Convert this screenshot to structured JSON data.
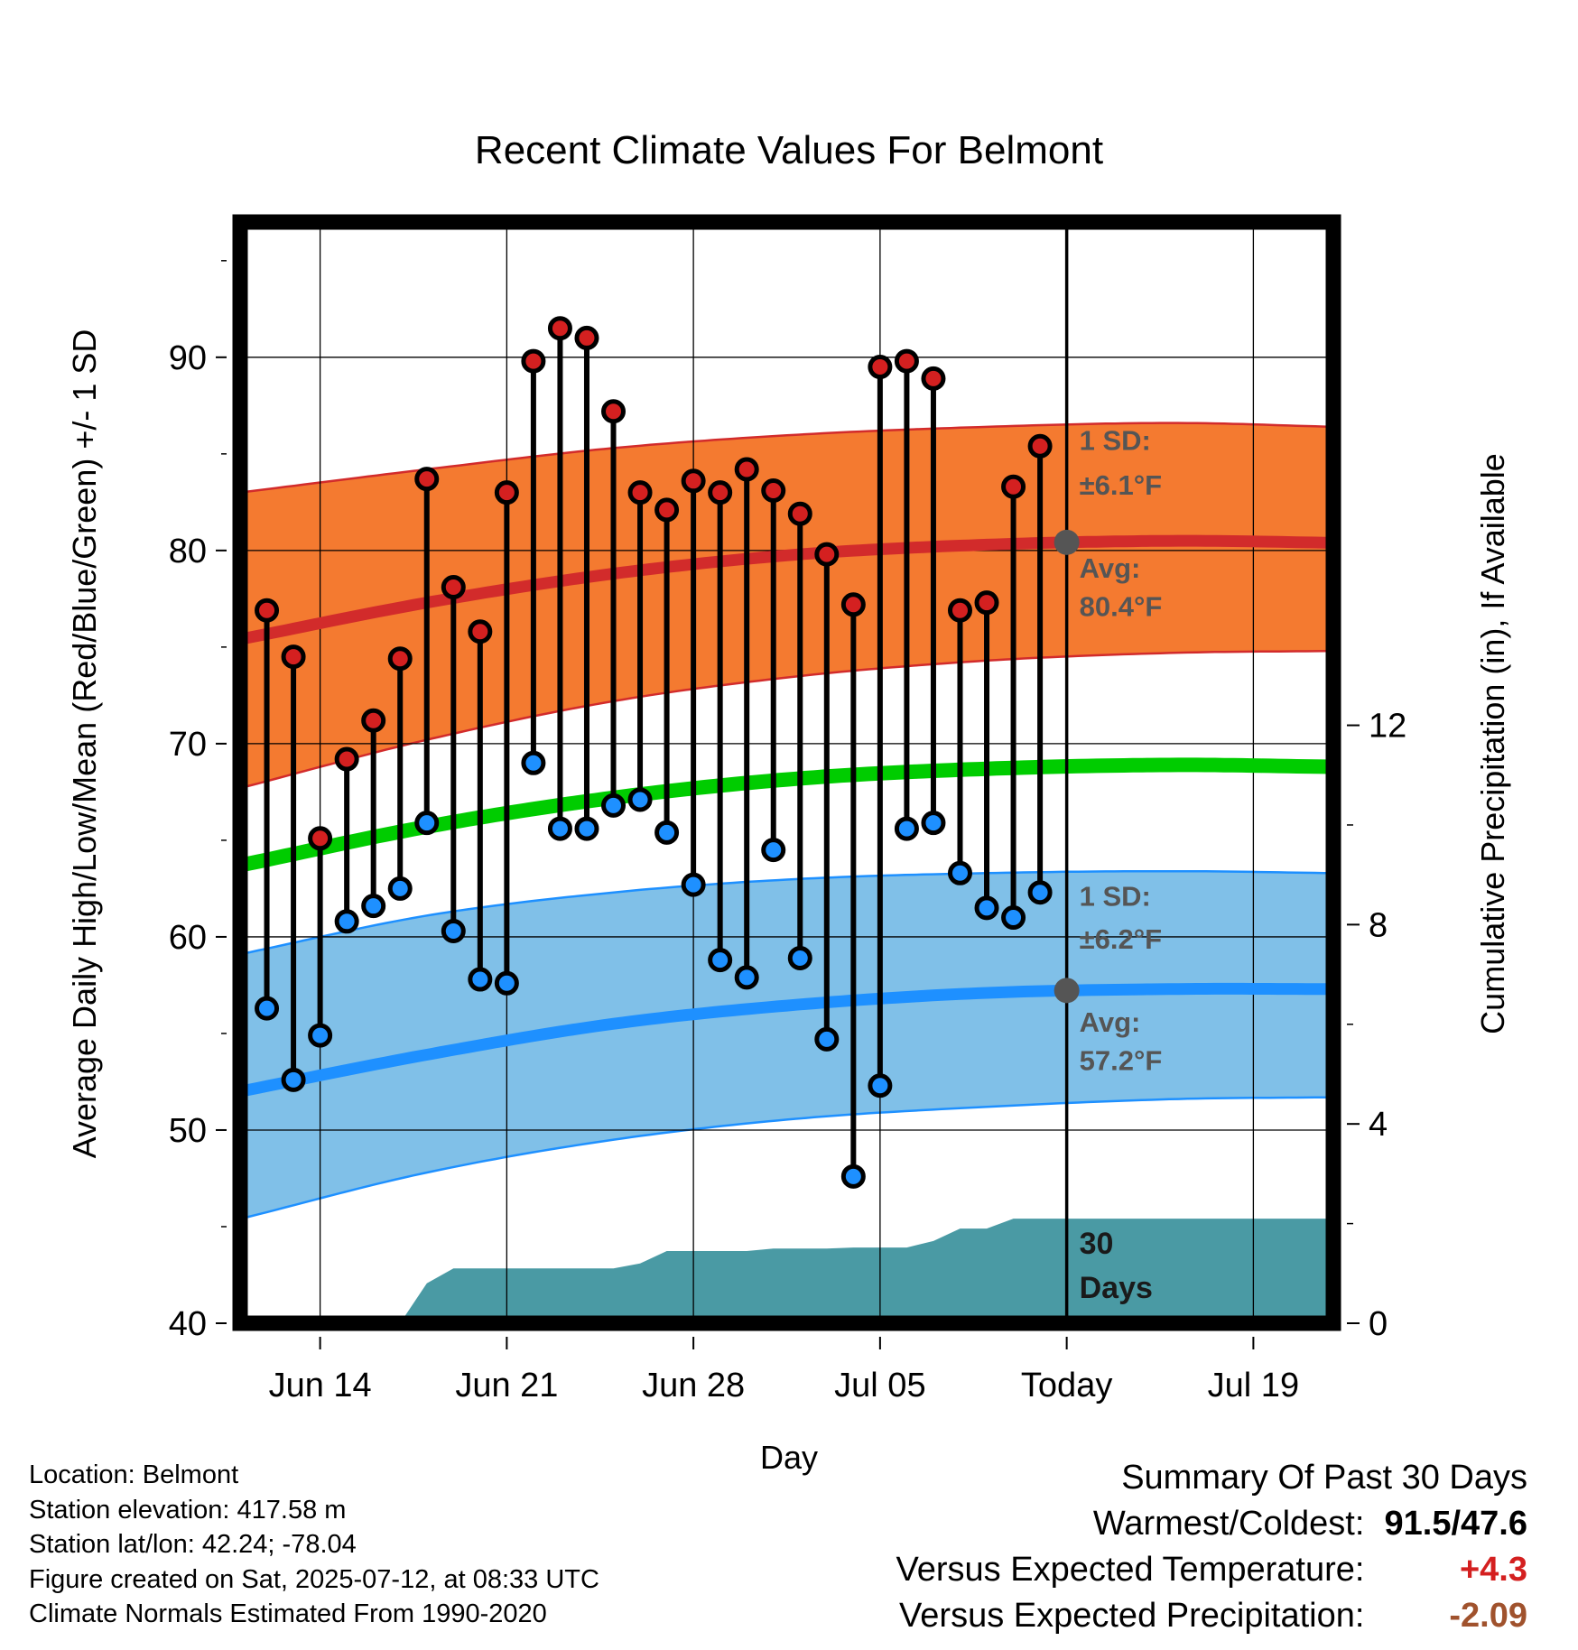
{
  "chart_data": {
    "type": "line",
    "title": "Recent Climate Values For Belmont",
    "xlabel": "Day",
    "ylabel": "Average Daily High/Low/Mean (Red/Blue/Green) +/- 1 SD",
    "y2label": "Cumulative Precipitation (in), If Available",
    "x_range": [
      "2025-06-11",
      "2025-07-22"
    ],
    "ylim": [
      40,
      97
    ],
    "y2lim": [
      0,
      22.1
    ],
    "x_ticks": [
      {
        "date": "2025-06-14",
        "label": "Jun 14"
      },
      {
        "date": "2025-06-21",
        "label": "Jun 21"
      },
      {
        "date": "2025-06-28",
        "label": "Jun 28"
      },
      {
        "date": "2025-07-05",
        "label": "Jul 05"
      },
      {
        "date": "2025-07-12",
        "label": "Today"
      },
      {
        "date": "2025-07-19",
        "label": "Jul 19"
      }
    ],
    "y_ticks": [
      40,
      50,
      60,
      70,
      80,
      90
    ],
    "y2_ticks": [
      0,
      4,
      8,
      12
    ],
    "grid": true,
    "today": "2025-07-12",
    "colors": {
      "high_band": "#f47a30",
      "high_line": "#d22b2b",
      "low_band": "#80c0e8",
      "low_line": "#1e90ff",
      "mean_line": "#00cc00",
      "precip": "#4a9aa4",
      "high_marker": "#d42020",
      "low_marker": "#1e90ff",
      "plus_value": "#d42020",
      "minus_value": "#a0522d"
    },
    "normals": {
      "dates": [
        "2025-06-11",
        "2025-06-18",
        "2025-06-25",
        "2025-07-02",
        "2025-07-09",
        "2025-07-16",
        "2025-07-22"
      ],
      "high_mean": [
        75.4,
        77.3,
        78.8,
        79.8,
        80.3,
        80.5,
        80.4
      ],
      "high_upper": [
        83.0,
        84.2,
        85.3,
        86.0,
        86.4,
        86.6,
        86.4
      ],
      "high_lower": [
        67.7,
        70.2,
        72.2,
        73.5,
        74.3,
        74.7,
        74.8
      ],
      "mean": [
        63.7,
        65.7,
        67.2,
        68.2,
        68.7,
        68.9,
        68.8
      ],
      "low_mean": [
        52.0,
        53.9,
        55.5,
        56.5,
        57.1,
        57.3,
        57.3
      ],
      "low_upper": [
        59.1,
        61.1,
        62.3,
        63.0,
        63.3,
        63.4,
        63.3
      ],
      "low_lower": [
        45.4,
        47.8,
        49.5,
        50.6,
        51.2,
        51.6,
        51.7
      ]
    },
    "daily": {
      "dates": [
        "2025-06-12",
        "2025-06-13",
        "2025-06-14",
        "2025-06-15",
        "2025-06-16",
        "2025-06-17",
        "2025-06-18",
        "2025-06-19",
        "2025-06-20",
        "2025-06-21",
        "2025-06-22",
        "2025-06-23",
        "2025-06-24",
        "2025-06-25",
        "2025-06-26",
        "2025-06-27",
        "2025-06-28",
        "2025-06-29",
        "2025-06-30",
        "2025-07-01",
        "2025-07-02",
        "2025-07-03",
        "2025-07-04",
        "2025-07-05",
        "2025-07-06",
        "2025-07-07",
        "2025-07-08",
        "2025-07-09",
        "2025-07-10",
        "2025-07-11"
      ],
      "high": [
        76.9,
        74.5,
        65.1,
        69.2,
        71.2,
        74.4,
        83.7,
        78.1,
        75.8,
        83.0,
        89.8,
        91.5,
        91.0,
        87.2,
        83.0,
        82.1,
        83.6,
        83.0,
        84.2,
        83.1,
        81.9,
        79.8,
        77.2,
        89.5,
        89.8,
        88.9,
        76.9,
        77.3,
        83.3,
        85.4
      ],
      "low": [
        56.3,
        52.6,
        54.9,
        60.8,
        61.6,
        62.5,
        65.9,
        60.3,
        57.8,
        57.6,
        69.0,
        65.6,
        65.6,
        66.8,
        67.1,
        65.4,
        62.7,
        58.8,
        57.9,
        64.5,
        58.9,
        54.7,
        47.6,
        52.3,
        65.6,
        65.9,
        63.3,
        61.5,
        61.0,
        62.3
      ]
    },
    "precip_cumulative": {
      "dates": [
        "2025-06-16",
        "2025-06-17",
        "2025-06-18",
        "2025-06-19",
        "2025-06-20",
        "2025-06-21",
        "2025-06-22",
        "2025-06-23",
        "2025-06-24",
        "2025-06-25",
        "2025-06-26",
        "2025-06-27",
        "2025-06-28",
        "2025-06-29",
        "2025-06-30",
        "2025-07-01",
        "2025-07-02",
        "2025-07-03",
        "2025-07-04",
        "2025-07-05",
        "2025-07-06",
        "2025-07-07",
        "2025-07-08",
        "2025-07-09",
        "2025-07-10",
        "2025-07-11",
        "2025-07-22"
      ],
      "values": [
        0.0,
        0.0,
        0.8,
        1.1,
        1.1,
        1.1,
        1.1,
        1.1,
        1.1,
        1.1,
        1.2,
        1.45,
        1.45,
        1.45,
        1.45,
        1.5,
        1.5,
        1.5,
        1.52,
        1.52,
        1.52,
        1.65,
        1.9,
        1.9,
        2.1,
        2.1,
        2.1
      ]
    },
    "annotations": {
      "high_sd_title": "1 SD:",
      "high_sd_value": "±6.1°F",
      "high_avg_title": "Avg:",
      "high_avg_value": "80.4°F",
      "low_sd_title": "1 SD:",
      "low_sd_value": "±6.2°F",
      "low_avg_title": "Avg:",
      "low_avg_value": "57.2°F",
      "precip_line1": "30",
      "precip_line2": "Days"
    }
  },
  "footer": {
    "location": "Location: Belmont",
    "elevation": "Station elevation: 417.58 m",
    "latlon": "Station lat/lon: 42.24; -78.04",
    "created": "Figure created on Sat, 2025-07-12, at 08:33 UTC",
    "normals": "Climate Normals Estimated From 1990-2020"
  },
  "summary": {
    "heading": "Summary Of Past 30 Days",
    "extremes_label": "Warmest/Coldest:",
    "extremes_value": "91.5/47.6",
    "temp_label": "Versus Expected Temperature:",
    "temp_value": "+4.3",
    "precip_label": "Versus Expected Precipitation:",
    "precip_value": "-2.09"
  }
}
